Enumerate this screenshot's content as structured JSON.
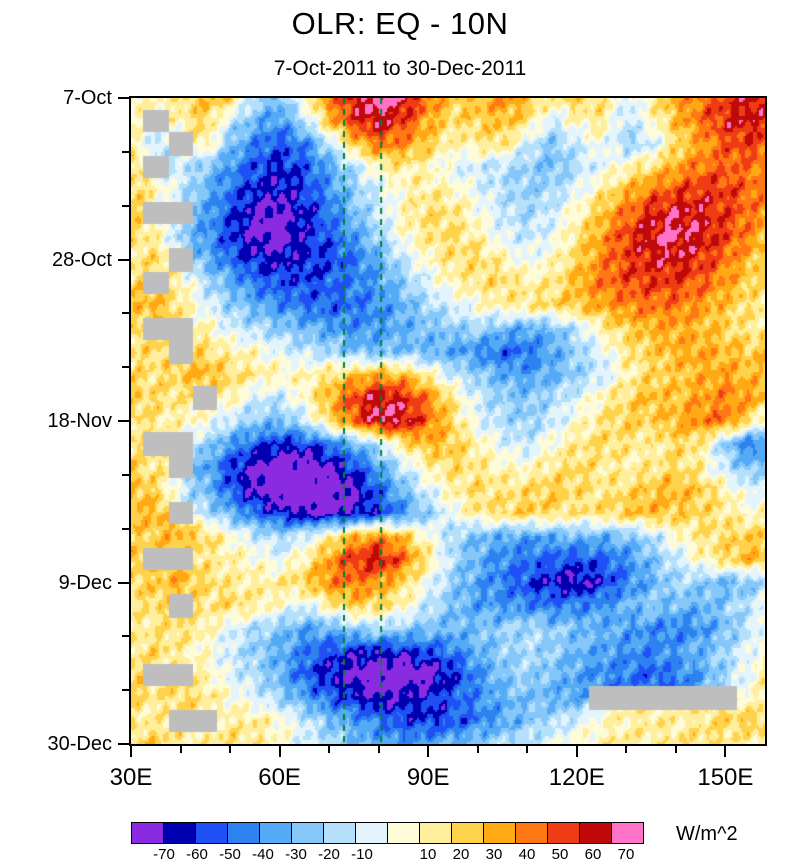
{
  "header": {
    "title": "OLR: EQ - 10N",
    "subtitle": "7-Oct-2011 to 30-Dec-2011"
  },
  "chart_data": {
    "type": "heatmap",
    "title": "OLR: EQ - 10N",
    "subtitle": "7-Oct-2011 to 30-Dec-2011",
    "units": "W/m^2",
    "x_axis": {
      "tick_labels": [
        "30E",
        "60E",
        "90E",
        "120E",
        "150E"
      ],
      "tick_values": [
        30,
        60,
        90,
        120,
        150
      ],
      "minor_tick_step_deg": 10,
      "range_deg": [
        30,
        158
      ]
    },
    "y_axis": {
      "tick_labels": [
        "7-Oct",
        "28-Oct",
        "18-Nov",
        "9-Dec",
        "30-Dec"
      ],
      "tick_days": [
        0,
        21,
        42,
        63,
        84
      ],
      "minor_tick_step_days": 7,
      "range_days": [
        0,
        84
      ]
    },
    "levels": [
      -70,
      -60,
      -50,
      -40,
      -30,
      -20,
      -10,
      0,
      10,
      20,
      30,
      40,
      50,
      60,
      70
    ],
    "colors": [
      "#8A2BE2",
      "#0000B0",
      "#1E50F5",
      "#2E82F0",
      "#55AAF5",
      "#86C7FA",
      "#B5E0FC",
      "#E4F4FD",
      "#FEFBD9",
      "#FFEE9B",
      "#FFD24B",
      "#FFAA14",
      "#FF7814",
      "#F03C14",
      "#C00A0A",
      "#FF73C8"
    ],
    "missing_color": "#BEBEBE",
    "dashed_lines": {
      "color": "#00803C",
      "x_values_deg": [
        73,
        80.5
      ]
    },
    "lons": [
      30,
      35,
      40,
      45,
      50,
      55,
      60,
      65,
      70,
      75,
      80,
      85,
      90,
      95,
      100,
      105,
      110,
      115,
      120,
      125,
      130,
      135,
      140,
      145,
      150,
      155,
      160
    ],
    "days": [
      0,
      3,
      6,
      9,
      12,
      15,
      18,
      21,
      24,
      27,
      30,
      33,
      36,
      39,
      42,
      45,
      48,
      51,
      54,
      57,
      60,
      63,
      66,
      69,
      72,
      75,
      78,
      81,
      84
    ],
    "values": [
      [
        15,
        5,
        20,
        30,
        25,
        -15,
        -30,
        10,
        40,
        65,
        78,
        70,
        45,
        25,
        30,
        40,
        30,
        15,
        25,
        20,
        -10,
        15,
        35,
        45,
        55,
        65,
        55
      ],
      [
        10,
        null,
        10,
        25,
        -10,
        -30,
        -40,
        -15,
        30,
        58,
        68,
        55,
        35,
        20,
        25,
        30,
        20,
        -10,
        10,
        15,
        -15,
        5,
        30,
        45,
        60,
        65,
        50
      ],
      [
        15,
        -15,
        null,
        15,
        -25,
        -45,
        -55,
        -45,
        -15,
        25,
        45,
        40,
        25,
        10,
        15,
        20,
        -10,
        -25,
        -10,
        5,
        -20,
        -10,
        20,
        35,
        50,
        55,
        45
      ],
      [
        20,
        null,
        -10,
        -25,
        -40,
        -55,
        -62,
        -55,
        -35,
        -15,
        10,
        15,
        10,
        -5,
        -10,
        -15,
        -20,
        -28,
        -15,
        -5,
        10,
        20,
        35,
        45,
        50,
        45,
        40
      ],
      [
        25,
        10,
        -10,
        -30,
        -48,
        -62,
        -68,
        -58,
        -42,
        -22,
        -8,
        8,
        15,
        10,
        -5,
        -15,
        -22,
        -18,
        -5,
        15,
        30,
        45,
        52,
        58,
        55,
        48,
        35
      ],
      [
        25,
        null,
        null,
        -35,
        -55,
        -72,
        -75,
        -65,
        -48,
        -28,
        -10,
        10,
        22,
        18,
        5,
        -10,
        -18,
        -10,
        8,
        28,
        45,
        60,
        68,
        65,
        55,
        45,
        30
      ],
      [
        20,
        12,
        -18,
        -40,
        -58,
        -75,
        -78,
        -62,
        -52,
        -38,
        -20,
        5,
        18,
        22,
        12,
        -5,
        -12,
        -2,
        18,
        38,
        55,
        68,
        72,
        65,
        55,
        40,
        25
      ],
      [
        15,
        22,
        null,
        -30,
        -50,
        -62,
        -66,
        -62,
        -58,
        -48,
        -32,
        -12,
        8,
        18,
        22,
        12,
        -2,
        8,
        22,
        42,
        55,
        62,
        65,
        58,
        45,
        30,
        20
      ],
      [
        22,
        null,
        12,
        -15,
        -32,
        -48,
        -55,
        -58,
        -52,
        -45,
        -38,
        -22,
        -5,
        10,
        18,
        22,
        12,
        15,
        32,
        45,
        52,
        55,
        55,
        48,
        38,
        25,
        15
      ],
      [
        28,
        32,
        18,
        -5,
        -20,
        -32,
        -42,
        -48,
        -52,
        -48,
        -42,
        -32,
        -18,
        -8,
        5,
        12,
        18,
        22,
        28,
        35,
        42,
        45,
        45,
        38,
        28,
        18,
        10
      ],
      [
        22,
        null,
        null,
        12,
        -8,
        -15,
        -22,
        -30,
        -36,
        -42,
        -38,
        -32,
        -28,
        -22,
        -18,
        -28,
        -35,
        -28,
        -12,
        12,
        25,
        32,
        35,
        30,
        25,
        15,
        20
      ],
      [
        18,
        22,
        null,
        22,
        12,
        8,
        -5,
        -12,
        -18,
        -25,
        -30,
        -25,
        -30,
        -36,
        -42,
        -52,
        -48,
        -36,
        -20,
        -5,
        15,
        25,
        32,
        36,
        30,
        26,
        30
      ],
      [
        22,
        18,
        26,
        32,
        22,
        15,
        10,
        8,
        18,
        28,
        35,
        30,
        12,
        -10,
        -22,
        -32,
        -38,
        -32,
        -22,
        -12,
        10,
        22,
        26,
        32,
        36,
        30,
        26
      ],
      [
        26,
        22,
        16,
        null,
        12,
        -8,
        -12,
        8,
        32,
        55,
        68,
        62,
        42,
        15,
        -10,
        -22,
        -26,
        -16,
        -6,
        12,
        22,
        32,
        28,
        36,
        42,
        36,
        30
      ],
      [
        20,
        16,
        10,
        5,
        -12,
        -22,
        -28,
        -12,
        22,
        48,
        72,
        68,
        48,
        22,
        -5,
        -16,
        -22,
        -12,
        6,
        16,
        26,
        22,
        32,
        42,
        46,
        20,
        -15
      ],
      [
        16,
        null,
        null,
        -18,
        -38,
        -52,
        -62,
        -58,
        -48,
        -32,
        -12,
        18,
        32,
        26,
        12,
        -5,
        -12,
        6,
        16,
        22,
        18,
        12,
        22,
        16,
        -25,
        -48,
        -38
      ],
      [
        26,
        16,
        null,
        -32,
        -58,
        -74,
        -82,
        -82,
        -72,
        -58,
        -36,
        -12,
        12,
        22,
        16,
        10,
        6,
        16,
        22,
        16,
        12,
        16,
        22,
        12,
        -12,
        -28,
        -18
      ],
      [
        32,
        22,
        -8,
        -28,
        -52,
        -72,
        -86,
        -88,
        -84,
        -72,
        -52,
        -28,
        -6,
        12,
        22,
        16,
        22,
        26,
        22,
        16,
        22,
        28,
        32,
        26,
        12,
        -8,
        6
      ],
      [
        28,
        32,
        null,
        -12,
        -32,
        -48,
        -62,
        -72,
        -74,
        -68,
        -58,
        -42,
        -22,
        0,
        16,
        22,
        26,
        22,
        16,
        22,
        26,
        32,
        26,
        22,
        16,
        6,
        12
      ],
      [
        22,
        26,
        32,
        22,
        6,
        -10,
        -18,
        -8,
        12,
        32,
        42,
        28,
        5,
        -18,
        -28,
        -34,
        -38,
        -34,
        -28,
        -32,
        -26,
        -16,
        6,
        16,
        22,
        26,
        22
      ],
      [
        26,
        null,
        null,
        16,
        12,
        6,
        -5,
        12,
        38,
        58,
        66,
        48,
        16,
        -16,
        -32,
        -42,
        -48,
        -52,
        -56,
        -52,
        -42,
        -26,
        -12,
        8,
        22,
        32,
        26
      ],
      [
        22,
        26,
        32,
        22,
        16,
        12,
        16,
        26,
        42,
        46,
        38,
        22,
        -2,
        -22,
        -36,
        -46,
        -56,
        -66,
        -72,
        -62,
        -46,
        -32,
        -16,
        -22,
        -32,
        -26,
        -12
      ],
      [
        16,
        22,
        null,
        16,
        22,
        16,
        6,
        -6,
        12,
        26,
        22,
        10,
        -12,
        -26,
        -36,
        -40,
        -44,
        -48,
        -44,
        -40,
        -32,
        -22,
        -28,
        -32,
        -22,
        -12,
        6
      ],
      [
        12,
        16,
        22,
        12,
        -6,
        -16,
        -26,
        -36,
        -32,
        -22,
        -16,
        -22,
        -26,
        -30,
        -26,
        -22,
        -16,
        -22,
        -26,
        -32,
        -36,
        -42,
        -46,
        -40,
        -28,
        -12,
        8
      ],
      [
        16,
        22,
        12,
        6,
        -10,
        -22,
        -32,
        -46,
        -56,
        -62,
        -66,
        -62,
        -56,
        -46,
        -32,
        -22,
        -16,
        -22,
        -30,
        -36,
        -40,
        -44,
        -38,
        -30,
        -18,
        -4,
        16
      ],
      [
        26,
        null,
        null,
        12,
        -6,
        -16,
        -32,
        -52,
        -66,
        -76,
        -82,
        -84,
        -78,
        -62,
        -42,
        -26,
        -20,
        -26,
        -36,
        -42,
        -46,
        -52,
        -46,
        -36,
        -20,
        2,
        22
      ],
      [
        22,
        16,
        22,
        16,
        6,
        -6,
        -20,
        -36,
        -52,
        -62,
        -72,
        -68,
        -62,
        -52,
        -42,
        -32,
        -26,
        -32,
        -36,
        null,
        null,
        null,
        null,
        null,
        null,
        6,
        16
      ],
      [
        16,
        12,
        null,
        null,
        12,
        16,
        6,
        -10,
        -26,
        -36,
        -46,
        -56,
        -60,
        -56,
        -46,
        -36,
        -26,
        -16,
        -6,
        6,
        12,
        16,
        12,
        16,
        22,
        26,
        22
      ],
      [
        22,
        26,
        16,
        12,
        22,
        16,
        6,
        -6,
        -16,
        -26,
        -36,
        -40,
        -36,
        -30,
        -22,
        -16,
        -10,
        -4,
        6,
        12,
        16,
        12,
        16,
        22,
        16,
        12,
        16
      ]
    ]
  }
}
